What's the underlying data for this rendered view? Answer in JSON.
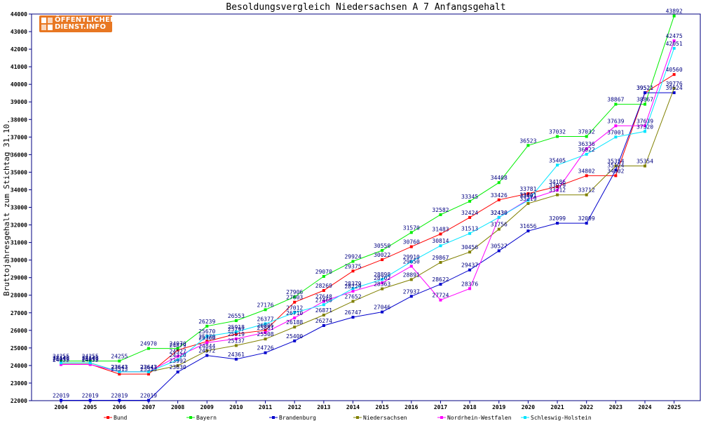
{
  "chart_data": {
    "type": "line",
    "title": "Besoldungsvergleich Niedersachsen A 7 Anfangsgehalt",
    "xlabel": "",
    "ylabel": "Bruttojahresgehalt zum Stichtag 31.10.",
    "categories": [
      "2004",
      "2005",
      "2006",
      "2007",
      "2008",
      "2009",
      "2010",
      "2011",
      "2012",
      "2013",
      "2014",
      "2015",
      "2016",
      "2017",
      "2018",
      "2019",
      "2020",
      "2021",
      "2022",
      "2023",
      "2024",
      "2025"
    ],
    "ylim": [
      22000,
      44000
    ],
    "yticks": [
      22000,
      23000,
      24000,
      25000,
      26000,
      27000,
      28000,
      29000,
      30000,
      31000,
      32000,
      33000,
      34000,
      35000,
      36000,
      37000,
      38000,
      39000,
      40000,
      41000,
      42000,
      43000,
      44000
    ],
    "grid": false,
    "legend_position": "bottom",
    "series": [
      {
        "name": "Bund",
        "color": "#ff0000",
        "values": [
          24072,
          24072,
          23513,
          23513,
          24879,
          25370,
          25797,
          26005,
          27603,
          28269,
          29375,
          30022,
          30760,
          31483,
          32424,
          33426,
          33781,
          34186,
          34802,
          34802,
          39521,
          40560
        ]
      },
      {
        "name": "Bayern",
        "color": "#00ee00",
        "values": [
          24255,
          24255,
          24255,
          24970,
          24970,
          26239,
          26553,
          27176,
          27906,
          29070,
          29924,
          30550,
          31570,
          32582,
          33345,
          34408,
          36523,
          37032,
          37032,
          38867,
          38867,
          43892
        ]
      },
      {
        "name": "Brandenburg",
        "color": "#0000cc",
        "values": [
          22019,
          22019,
          22019,
          22019,
          23630,
          24572,
          24361,
          24726,
          25400,
          26274,
          26747,
          27046,
          27937,
          28622,
          29437,
          30527,
          31656,
          32099,
          32099,
          35124,
          39521,
          39524
        ]
      },
      {
        "name": "Niedersachsen",
        "color": "#808000",
        "values": [
          24148,
          24148,
          23643,
          23643,
          23992,
          24844,
          25137,
          25508,
          26188,
          26871,
          27652,
          28363,
          28891,
          29867,
          30456,
          31756,
          33219,
          33712,
          33712,
          35354,
          35354,
          39776
        ]
      },
      {
        "name": "Nordrhein-Westfalen",
        "color": "#ff00ff",
        "values": [
          24055,
          24055,
          23643,
          23643,
          24527,
          25300,
          25519,
          25881,
          26710,
          27648,
          28229,
          28702,
          29650,
          27724,
          28376,
          32430,
          33441,
          33979,
          36336,
          37639,
          37639,
          42475
        ]
      },
      {
        "name": "Schleswig-Holstein",
        "color": "#00e5ff",
        "values": [
          24148,
          24148,
          23643,
          23643,
          24320,
          25670,
          25918,
          26377,
          27012,
          27460,
          28379,
          28898,
          29910,
          30814,
          31513,
          32430,
          33401,
          35405,
          36022,
          37001,
          37320,
          42051
        ]
      }
    ]
  },
  "logo": {
    "line1": "ÖFFENTLICHER",
    "line2": "DIENST.INFO"
  }
}
